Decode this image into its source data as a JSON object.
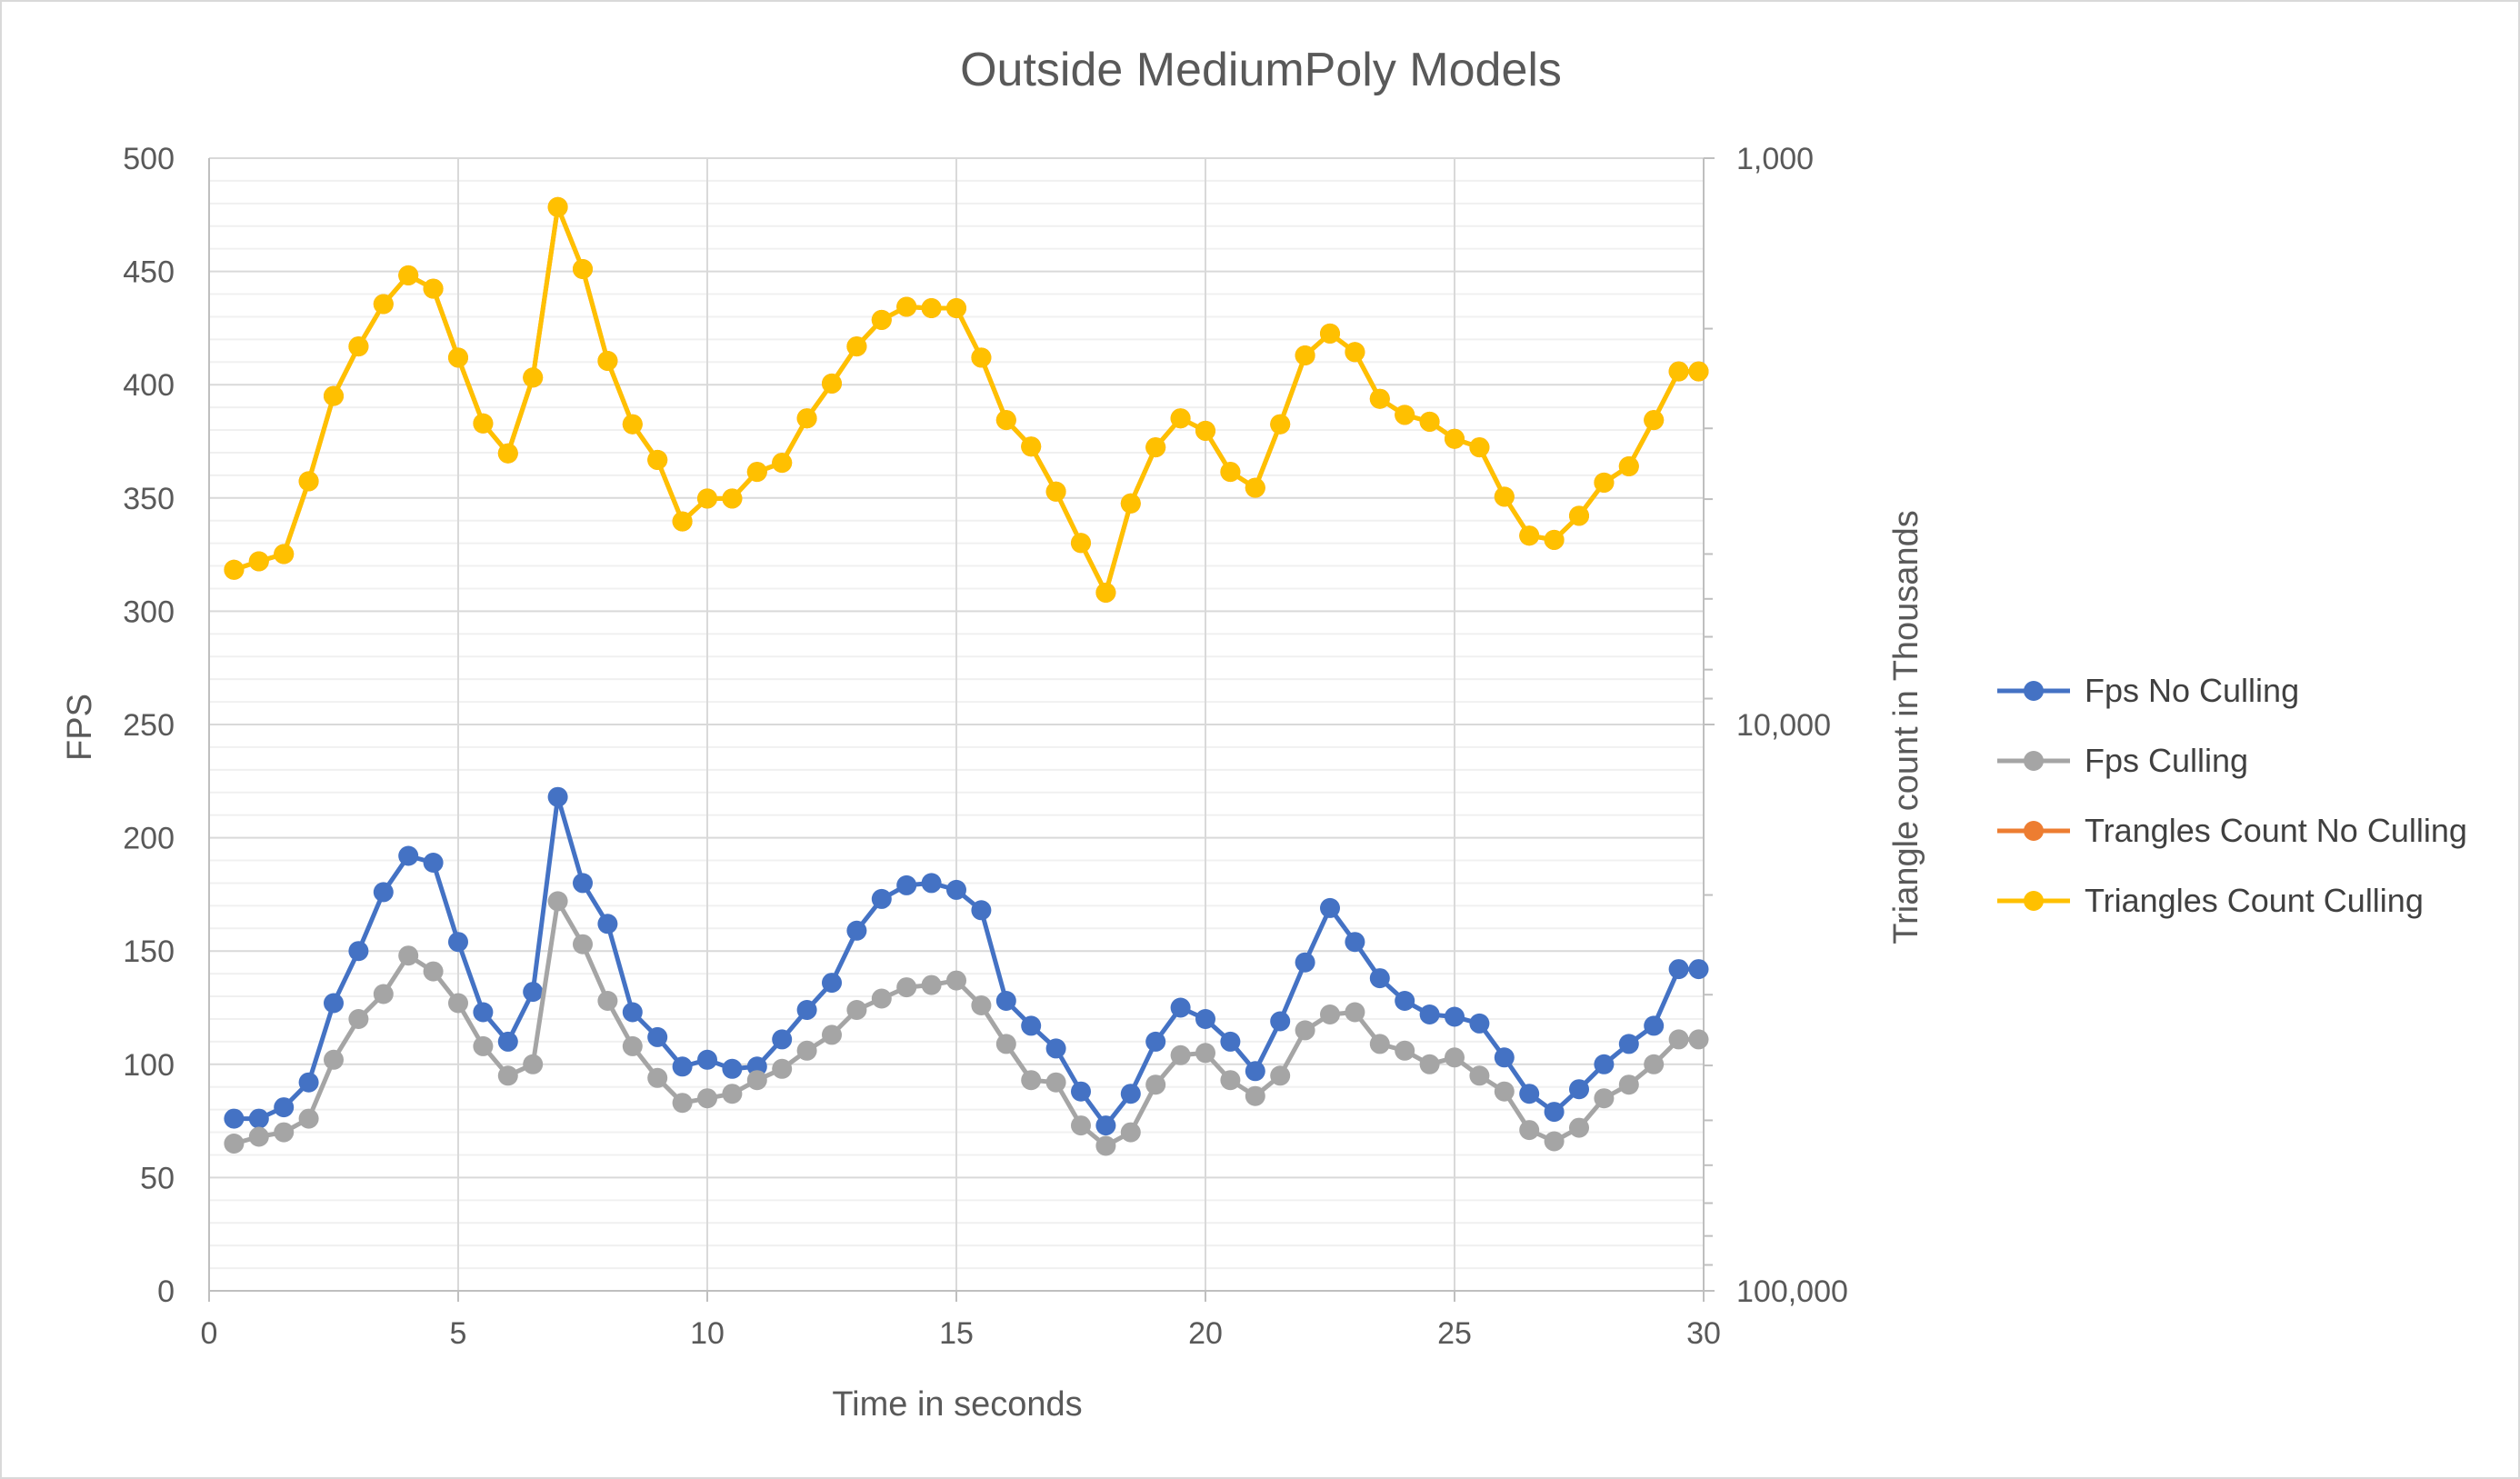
{
  "chart_data": {
    "type": "line",
    "title": "Outside MediumPoly Models",
    "xlabel": "Time in seconds",
    "ylabel": "FPS",
    "y2label": "Triangle count in Thousands",
    "xlim": [
      0,
      30
    ],
    "ylim": [
      0,
      500
    ],
    "y2lim": [
      1000,
      100000
    ],
    "y2scale": "log-reversed",
    "grid": true,
    "legend_position": "right",
    "x_ticks": [
      "0",
      "5",
      "10",
      "15",
      "20",
      "25",
      "30"
    ],
    "y_ticks": [
      "0",
      "50",
      "100",
      "150",
      "200",
      "250",
      "300",
      "350",
      "400",
      "450",
      "500"
    ],
    "y2_ticks": [
      "1,000",
      "10,000",
      "100,000"
    ],
    "x": [
      0.5,
      1.0,
      1.5,
      2.0,
      2.5,
      3.0,
      3.5,
      4.0,
      4.5,
      5.0,
      5.5,
      6.0,
      6.5,
      7.0,
      7.5,
      8.0,
      8.5,
      9.0,
      9.5,
      10.0,
      10.5,
      11.0,
      11.5,
      12.0,
      12.5,
      13.0,
      13.5,
      14.0,
      14.5,
      15.0,
      15.5,
      16.0,
      16.5,
      17.0,
      17.5,
      18.0,
      18.5,
      19.0,
      19.5,
      20.0,
      20.5,
      21.0,
      21.5,
      22.0,
      22.5,
      23.0,
      23.5,
      24.0,
      24.5,
      25.0,
      25.5,
      26.0,
      26.5,
      27.0,
      27.5,
      28.0,
      28.5,
      29.0,
      29.5,
      29.9
    ],
    "series": [
      {
        "name": "Fps No Culling",
        "color": "#4472c4",
        "axis": "left",
        "values": [
          76,
          76,
          81,
          92,
          127,
          150,
          176,
          192,
          189,
          154,
          123,
          110,
          132,
          218,
          180,
          162,
          123,
          112,
          99,
          102,
          98,
          99,
          111,
          124,
          136,
          159,
          173,
          179,
          180,
          177,
          168,
          128,
          117,
          107,
          88,
          73,
          87,
          110,
          125,
          120,
          110,
          97,
          119,
          145,
          169,
          154,
          138,
          128,
          122,
          121,
          118,
          103,
          87,
          79,
          89,
          100,
          109,
          117,
          142,
          142
        ]
      },
      {
        "name": "Fps Culling",
        "color": "#a5a5a5",
        "axis": "left",
        "values": [
          65,
          68,
          70,
          76,
          102,
          120,
          131,
          148,
          141,
          127,
          108,
          95,
          100,
          172,
          153,
          128,
          108,
          94,
          83,
          85,
          87,
          93,
          98,
          106,
          113,
          124,
          129,
          134,
          135,
          137,
          126,
          109,
          93,
          92,
          73,
          64,
          70,
          91,
          104,
          105,
          93,
          86,
          95,
          115,
          122,
          123,
          109,
          106,
          100,
          103,
          95,
          88,
          71,
          66,
          72,
          85,
          91,
          100,
          111,
          111
        ]
      },
      {
        "name": "Trangles Count No Culling",
        "color": "#ed7d31",
        "axis": "right",
        "values": [
          5330,
          5150,
          5000,
          3720,
          2630,
          2150,
          1810,
          1610,
          1700,
          2250,
          2940,
          3320,
          2440,
          1220,
          1570,
          2280,
          2950,
          3410,
          4380,
          3990,
          3990,
          3580,
          3450,
          2880,
          2500,
          2150,
          1930,
          1830,
          1840,
          1840,
          2250,
          2900,
          3230,
          3880,
          4780,
          5850,
          4070,
          3240,
          2880,
          3030,
          3580,
          3820,
          2950,
          2230,
          2040,
          2200,
          2660,
          2840,
          2920,
          3130,
          3240,
          3960,
          4640,
          4720,
          4280,
          3740,
          3500,
          2900,
          2380,
          2380
        ]
      },
      {
        "name": "Triangles Count Culling",
        "color": "#ffc000",
        "axis": "right",
        "values": [
          5330,
          5150,
          5000,
          3720,
          2630,
          2150,
          1810,
          1610,
          1700,
          2250,
          2940,
          3320,
          2440,
          1220,
          1570,
          2280,
          2950,
          3410,
          4380,
          3990,
          3990,
          3580,
          3450,
          2880,
          2500,
          2150,
          1930,
          1830,
          1840,
          1840,
          2250,
          2900,
          3230,
          3880,
          4780,
          5850,
          4070,
          3240,
          2880,
          3030,
          3580,
          3820,
          2950,
          2230,
          2040,
          2200,
          2660,
          2840,
          2920,
          3130,
          3240,
          3960,
          4640,
          4720,
          4280,
          3740,
          3500,
          2900,
          2380,
          2380
        ]
      }
    ]
  }
}
